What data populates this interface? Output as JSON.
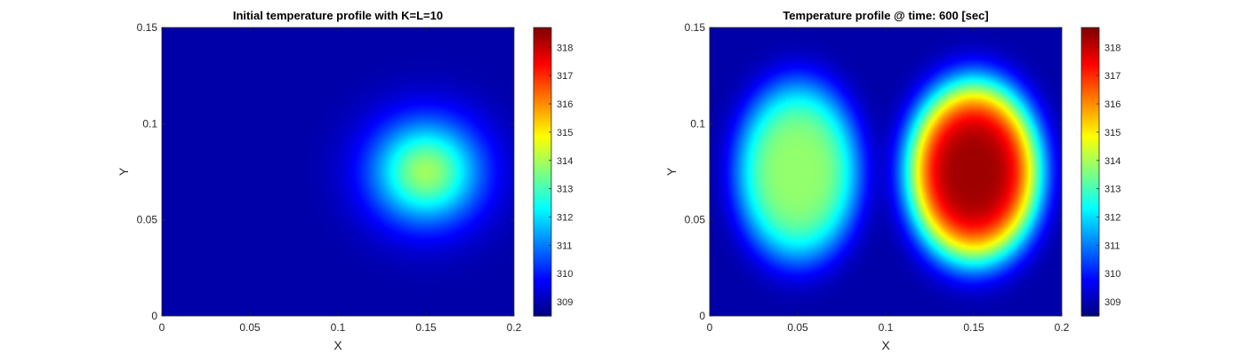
{
  "chart_data": [
    {
      "type": "heatmap",
      "title": "Initial temperature profile with K=L=10",
      "xlabel": "X",
      "ylabel": "Y",
      "xlim": [
        0,
        0.2
      ],
      "ylim": [
        0,
        0.15
      ],
      "xticks": [
        "0",
        "0.05",
        "0.1",
        "0.15",
        "0.2"
      ],
      "yticks": [
        "0",
        "0.05",
        "0.1",
        "0.15"
      ],
      "colormap": "jet",
      "clim": [
        308.5,
        318.7
      ],
      "colorbar_ticks": [
        "309",
        "310",
        "311",
        "312",
        "313",
        "314",
        "315",
        "316",
        "317",
        "318"
      ],
      "base_temperature": 308.9,
      "hotspots": [
        {
          "x": 0.15,
          "y": 0.075,
          "peak": 313.9,
          "sigma_x": 0.022,
          "sigma_y": 0.019,
          "power": 2
        }
      ]
    },
    {
      "type": "heatmap",
      "title": "Temperature profile @ time: 600 [sec]",
      "xlabel": "X",
      "ylabel": "Y",
      "xlim": [
        0,
        0.2
      ],
      "ylim": [
        0,
        0.15
      ],
      "xticks": [
        "0",
        "0.05",
        "0.1",
        "0.15",
        "0.2"
      ],
      "yticks": [
        "0",
        "0.05",
        "0.1",
        "0.15"
      ],
      "colormap": "jet",
      "clim": [
        308.5,
        318.7
      ],
      "colorbar_ticks": [
        "309",
        "310",
        "311",
        "312",
        "313",
        "314",
        "315",
        "316",
        "317",
        "318"
      ],
      "base_temperature": 308.9,
      "hotspots": [
        {
          "x": 0.05,
          "y": 0.075,
          "peak": 313.8,
          "sigma_x": 0.03,
          "sigma_y": 0.04,
          "power": 4
        },
        {
          "x": 0.15,
          "y": 0.075,
          "peak": 318.4,
          "sigma_x": 0.032,
          "sigma_y": 0.04,
          "power": 4
        }
      ]
    }
  ]
}
